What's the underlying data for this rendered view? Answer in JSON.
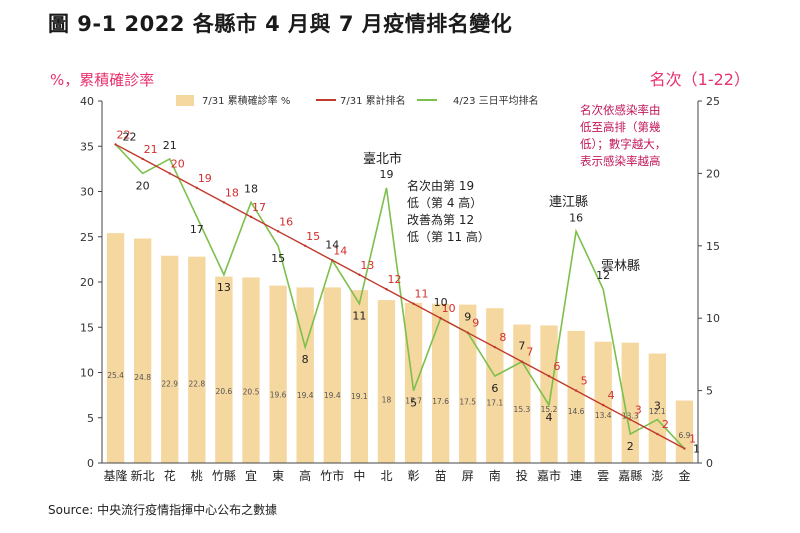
{
  "title": "圖 9-1 2022 各縣市 4 月與 7 月疫情排名變化",
  "source": "Source: 中央流行疫情指揮中心公布之數據",
  "colors": {
    "bar": "#f5d7a0",
    "rank_line": "#c0392b",
    "avg_line": "#7cc04b",
    "axis_title": "#e8336d",
    "note": "#c2185b"
  },
  "chart_data": {
    "type": "bar",
    "categories": [
      "基隆",
      "新北",
      "花",
      "桃",
      "竹縣",
      "宜",
      "東",
      "高",
      "竹市",
      "中",
      "北",
      "彰",
      "苗",
      "屏",
      "南",
      "投",
      "嘉市",
      "連",
      "雲",
      "嘉縣",
      "澎",
      "金"
    ],
    "y_left": {
      "label": "%，累積確診率",
      "ylim": [
        0,
        40
      ],
      "ticks": [
        "0",
        "5",
        "10",
        "15",
        "20",
        "25",
        "30",
        "35",
        "40"
      ]
    },
    "y_right": {
      "label": "名次（1-22）",
      "ylim": [
        0,
        25
      ],
      "ticks": [
        "0",
        "5",
        "10",
        "15",
        "20",
        "25"
      ]
    },
    "series": [
      {
        "name": "7/31 累積確診率 %",
        "type": "bar",
        "axis": "left",
        "values": [
          25.4,
          24.8,
          22.9,
          22.8,
          20.6,
          20.5,
          19.6,
          19.4,
          19.4,
          19.1,
          18,
          17.7,
          17.6,
          17.5,
          17.1,
          15.3,
          15.2,
          14.6,
          13.4,
          13.3,
          12.1,
          6.9
        ],
        "labels": [
          "25.4",
          "24.8",
          "22.9",
          "22.8",
          "20.6",
          "20.5",
          "19.6",
          "19.4",
          "19.4",
          "19.1",
          "18",
          "17.7",
          "17.6",
          "17.5",
          "17.1",
          "15.3",
          "15.2",
          "14.6",
          "13.4",
          "13.3",
          "12.1",
          "6.9"
        ]
      },
      {
        "name": "7/31 累計排名",
        "type": "line",
        "axis": "right",
        "values": [
          22,
          21,
          20,
          19,
          18,
          17,
          16,
          15,
          14,
          13,
          12,
          11,
          10,
          9,
          8,
          7,
          6,
          5,
          4,
          3,
          2,
          1
        ],
        "labels": [
          "22",
          "21",
          "20",
          "19",
          "18",
          "17",
          "16",
          "15",
          "14",
          "13",
          "12",
          "11",
          "10",
          "9",
          "8",
          "7",
          "6",
          "5",
          "4",
          "3",
          "2",
          "1"
        ]
      },
      {
        "name": "4/23 三日平均排名",
        "type": "line",
        "axis": "right",
        "values": [
          22,
          20,
          21,
          17,
          13,
          18,
          15,
          8,
          14,
          11,
          19,
          5,
          10,
          9,
          6,
          7,
          4,
          16,
          12,
          2,
          3,
          1
        ],
        "labels": [
          "22",
          "20",
          "21",
          "17",
          "13",
          "18",
          "15",
          "8",
          "14",
          "11",
          "19",
          "5",
          "10",
          "9",
          "6",
          "7",
          "4",
          "16",
          "12",
          "2",
          "3",
          "1"
        ]
      }
    ],
    "annotations": {
      "taipei_name": "臺北市",
      "taipei_desc": [
        "名次由第 19",
        "低（第 4 高）",
        "改善為第 12",
        "低（第 11 高）"
      ],
      "lienchiang": "連江縣",
      "yunlin": "雲林縣",
      "note": [
        "名次依感染率由",
        "低至高排（第幾",
        "低）；數字越大，",
        "表示感染率越高"
      ]
    },
    "legend_position": "top"
  }
}
